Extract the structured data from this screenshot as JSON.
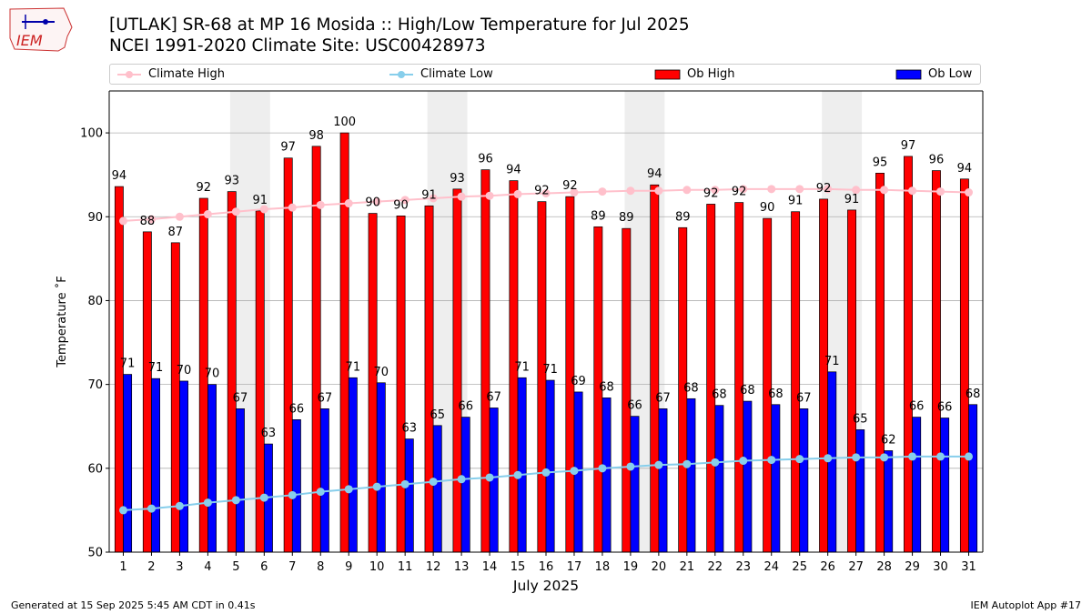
{
  "header": {
    "title_line1": "[UTLAK] SR-68 at MP 16 Mosida  :: High/Low Temperature for Jul 2025",
    "title_line2": "NCEI 1991-2020 Climate Site: USC00428973",
    "logo_text": "IEM"
  },
  "legend": {
    "climate_high": "Climate High",
    "climate_low": "Climate Low",
    "ob_high": "Ob High",
    "ob_low": "Ob Low"
  },
  "footer": {
    "generated": "Generated at 15 Sep 2025 5:45 AM CDT in 0.41s",
    "app": "IEM Autoplot App #17"
  },
  "colors": {
    "ob_high": "#ff0000",
    "ob_low": "#0000ff",
    "climate_high": "#ffc0cb",
    "climate_low": "#87ceeb",
    "weekend_band": "#eeeeee",
    "grid": "#b0b0b0"
  },
  "chart_data": {
    "type": "bar",
    "title": "[UTLAK] SR-68 at MP 16 Mosida  :: High/Low Temperature for Jul 2025",
    "xlabel": "July 2025",
    "ylabel": "Temperature ˚F",
    "ylim": [
      50,
      105
    ],
    "yticks": [
      50,
      60,
      70,
      80,
      90,
      100
    ],
    "categories": [
      "1",
      "2",
      "3",
      "4",
      "5",
      "6",
      "7",
      "8",
      "9",
      "10",
      "11",
      "12",
      "13",
      "14",
      "15",
      "16",
      "17",
      "18",
      "19",
      "20",
      "21",
      "22",
      "23",
      "24",
      "25",
      "26",
      "27",
      "28",
      "29",
      "30",
      "31"
    ],
    "weekend_bands": [
      [
        5,
        6
      ],
      [
        12,
        13
      ],
      [
        19,
        20
      ],
      [
        26,
        27
      ]
    ],
    "series": [
      {
        "name": "Ob High",
        "kind": "bar",
        "values": [
          93.6,
          88.2,
          86.9,
          92.2,
          93.0,
          90.7,
          97.0,
          98.4,
          100.0,
          90.4,
          90.1,
          91.3,
          93.3,
          95.6,
          94.3,
          91.8,
          92.4,
          88.8,
          88.6,
          93.8,
          88.7,
          91.5,
          91.7,
          89.8,
          90.6,
          92.1,
          90.8,
          95.2,
          97.2,
          95.5,
          94.5
        ],
        "labels": [
          "94",
          "88",
          "87",
          "92",
          "93",
          "91",
          "97",
          "98",
          "100",
          "90",
          "90",
          "91",
          "93",
          "96",
          "94",
          "92",
          "92",
          "89",
          "89",
          "94",
          "89",
          "92",
          "92",
          "90",
          "91",
          "92",
          "91",
          "95",
          "97",
          "96",
          "94"
        ]
      },
      {
        "name": "Ob Low",
        "kind": "bar",
        "values": [
          71.2,
          70.7,
          70.4,
          70.0,
          67.1,
          62.9,
          65.8,
          67.1,
          70.8,
          70.2,
          63.5,
          65.1,
          66.1,
          67.2,
          70.8,
          70.5,
          69.1,
          68.4,
          66.2,
          67.1,
          68.3,
          67.5,
          68.0,
          67.6,
          67.1,
          71.5,
          64.6,
          62.1,
          66.1,
          66.0,
          67.6
        ],
        "labels": [
          "71",
          "71",
          "70",
          "70",
          "67",
          "63",
          "66",
          "67",
          "71",
          "70",
          "63",
          "65",
          "66",
          "67",
          "71",
          "71",
          "69",
          "68",
          "66",
          "67",
          "68",
          "68",
          "68",
          "68",
          "67",
          "71",
          "65",
          "62",
          "66",
          "66",
          "68"
        ]
      },
      {
        "name": "Climate High",
        "kind": "line",
        "values": [
          89.5,
          89.7,
          90.0,
          90.3,
          90.6,
          90.9,
          91.1,
          91.4,
          91.6,
          91.8,
          92.0,
          92.2,
          92.4,
          92.5,
          92.7,
          92.8,
          92.9,
          93.0,
          93.1,
          93.1,
          93.2,
          93.2,
          93.3,
          93.3,
          93.3,
          93.3,
          93.2,
          93.2,
          93.1,
          93.0,
          92.9
        ]
      },
      {
        "name": "Climate Low",
        "kind": "line",
        "values": [
          55.0,
          55.2,
          55.5,
          55.9,
          56.2,
          56.5,
          56.8,
          57.2,
          57.5,
          57.8,
          58.1,
          58.4,
          58.7,
          58.9,
          59.2,
          59.5,
          59.7,
          60.0,
          60.2,
          60.4,
          60.5,
          60.7,
          60.9,
          61.0,
          61.1,
          61.2,
          61.3,
          61.3,
          61.4,
          61.4,
          61.4
        ]
      }
    ]
  }
}
